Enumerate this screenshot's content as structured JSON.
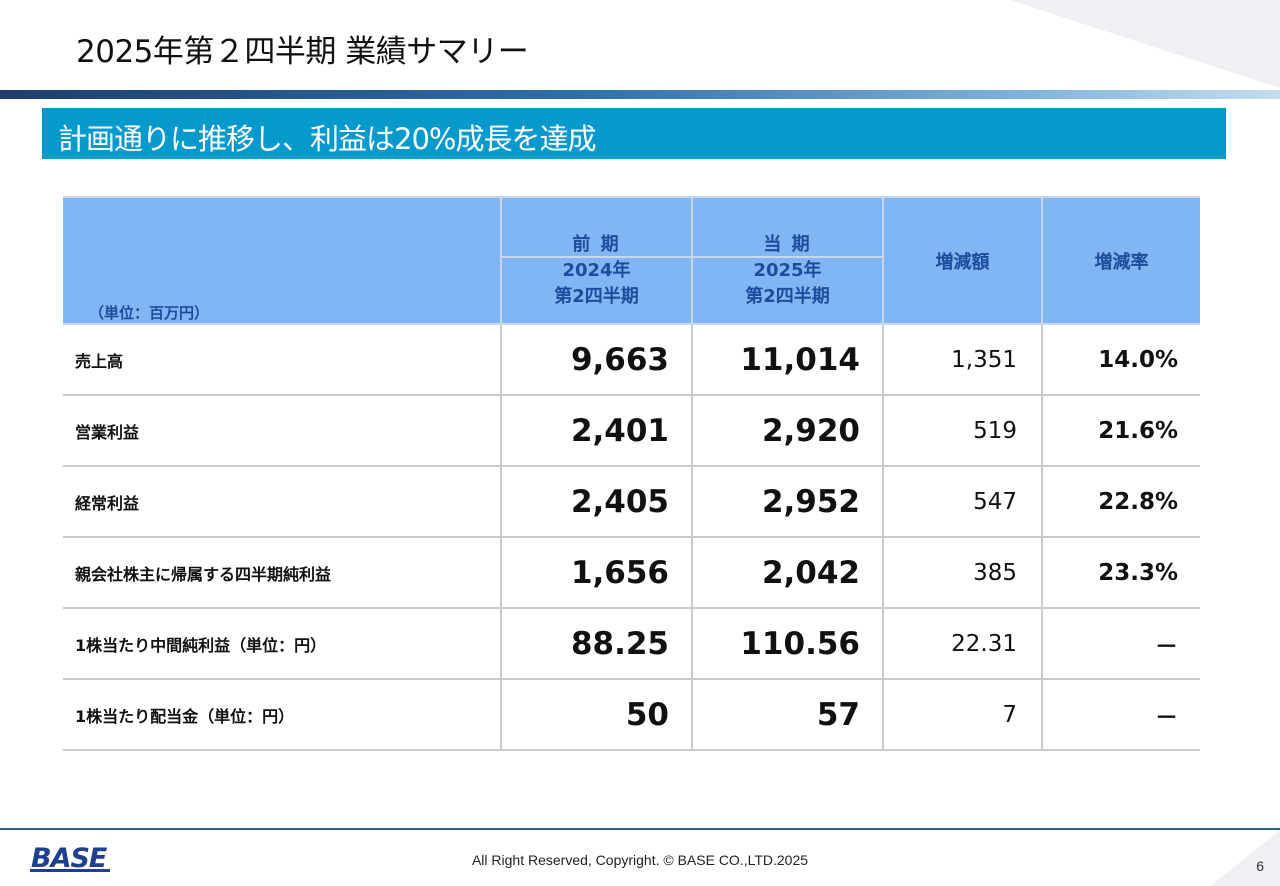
{
  "slide": {
    "title": "2025年第２四半期 業績サマリー",
    "headline": "計画通りに推移し、利益は20%成長を達成",
    "page_number": "6"
  },
  "table": {
    "unit_label": "（単位：百万円）",
    "prev_period_label": "前 期",
    "prev_period_year": "2024年",
    "prev_period_quarter": "第2四半期",
    "curr_period_label": "当 期",
    "curr_period_year": "2025年",
    "curr_period_quarter": "第2四半期",
    "change_amount_label": "増減額",
    "change_rate_label": "増減率",
    "rows": [
      {
        "label": "売上高",
        "prev": "9,663",
        "curr": "11,014",
        "change": "1,351",
        "rate": "14.0%"
      },
      {
        "label": "営業利益",
        "prev": "2,401",
        "curr": "2,920",
        "change": "519",
        "rate": "21.6%"
      },
      {
        "label": "経常利益",
        "prev": "2,405",
        "curr": "2,952",
        "change": "547",
        "rate": "22.8%"
      },
      {
        "label": "親会社株主に帰属する四半期純利益",
        "prev": "1,656",
        "curr": "2,042",
        "change": "385",
        "rate": "23.3%"
      },
      {
        "label": "1株当たり中間純利益（単位：円）",
        "prev": "88.25",
        "curr": "110.56",
        "change": "22.31",
        "rate": "－"
      },
      {
        "label": "1株当たり配当金（単位：円）",
        "prev": "50",
        "curr": "57",
        "change": "7",
        "rate": "－"
      }
    ]
  },
  "footer": {
    "logo_text": "BASE",
    "copyright": "All Right Reserved, Copyright. © BASE CO.,LTD.2025"
  },
  "colors": {
    "headline_band": "#0599cc",
    "table_header_bg": "#7fb6f3",
    "table_header_text": "#1c4d9c",
    "logo_blue": "#1f3f8f"
  }
}
